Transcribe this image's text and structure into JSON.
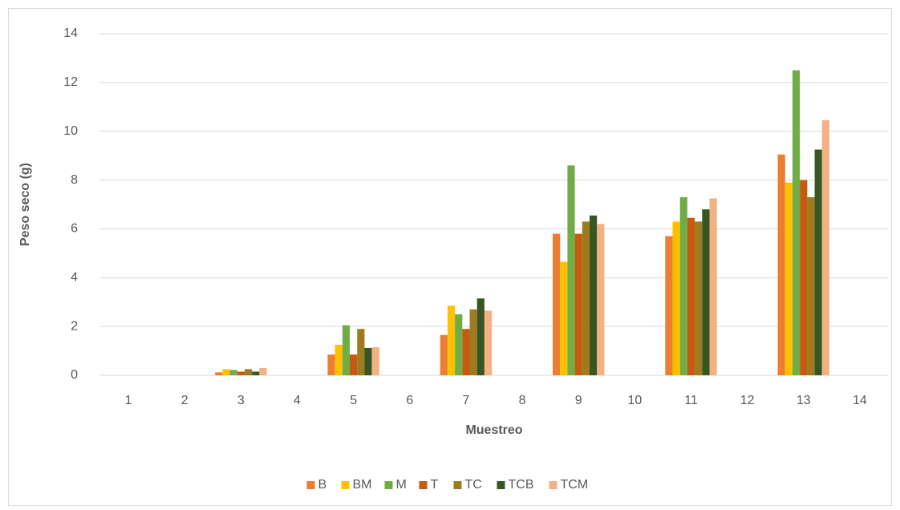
{
  "chart_data": {
    "type": "bar",
    "x_label": "Muestreo",
    "y_label": "Peso seco (g)",
    "categories": [
      "1",
      "2",
      "3",
      "4",
      "5",
      "6",
      "7",
      "8",
      "9",
      "10",
      "11",
      "12",
      "13",
      "14"
    ],
    "series": [
      {
        "name": "B",
        "color": "#ed7d31",
        "values": [
          null,
          null,
          0.12,
          null,
          0.85,
          null,
          1.65,
          null,
          5.8,
          null,
          5.7,
          null,
          9.05,
          null
        ]
      },
      {
        "name": "BM",
        "color": "#ffc000",
        "values": [
          null,
          null,
          0.25,
          null,
          1.25,
          null,
          2.85,
          null,
          4.65,
          null,
          6.3,
          null,
          7.9,
          null
        ]
      },
      {
        "name": "M",
        "color": "#70ad47",
        "values": [
          null,
          null,
          0.22,
          null,
          2.05,
          null,
          2.5,
          null,
          8.6,
          null,
          7.3,
          null,
          12.5,
          null
        ]
      },
      {
        "name": "T",
        "color": "#c55a11",
        "values": [
          null,
          null,
          0.15,
          null,
          0.85,
          null,
          1.9,
          null,
          5.8,
          null,
          6.45,
          null,
          8.0,
          null
        ]
      },
      {
        "name": "TC",
        "color": "#9e7b1e",
        "values": [
          null,
          null,
          0.25,
          null,
          1.9,
          null,
          2.7,
          null,
          6.3,
          null,
          6.3,
          null,
          7.3,
          null
        ]
      },
      {
        "name": "TCB",
        "color": "#375623",
        "values": [
          null,
          null,
          0.15,
          null,
          1.12,
          null,
          3.15,
          null,
          6.55,
          null,
          6.8,
          null,
          9.25,
          null
        ]
      },
      {
        "name": "TCM",
        "color": "#f4b183",
        "values": [
          null,
          null,
          0.3,
          null,
          1.15,
          null,
          2.65,
          null,
          6.2,
          null,
          7.25,
          null,
          10.45,
          null
        ]
      }
    ],
    "ylim": [
      0,
      14
    ],
    "yticks": [
      0,
      2,
      4,
      6,
      8,
      10,
      12,
      14
    ],
    "grid": true,
    "legend": "bottom"
  }
}
